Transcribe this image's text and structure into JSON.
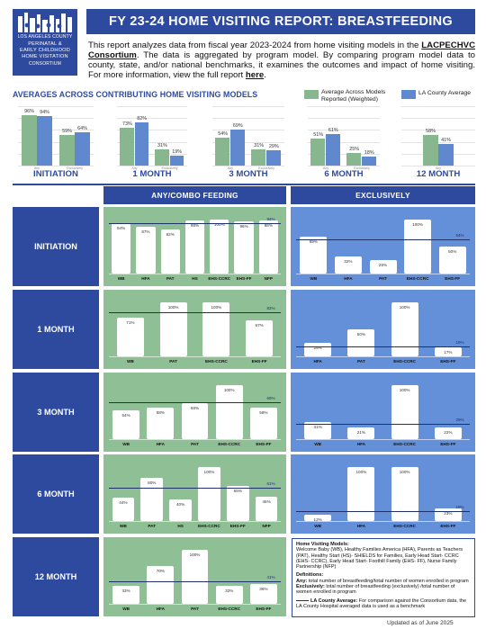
{
  "logo": {
    "line1": "LOS ANGELES COUNTY",
    "line2": "PERINATAL &",
    "line3": "EARLY CHILDHOOD",
    "line4": "HOME VISITATION",
    "line5": "CONSORTIUM"
  },
  "header": {
    "title": "FY 23-24 HOME VISITING REPORT: BREASTFEEDING"
  },
  "intro": {
    "text1": "This report analyzes data from fiscal year 2023-2024 from home visiting models in the ",
    "link1": "LACPECHVC Consortium",
    "text2": ". The data is aggregated by program model. By comparing program model data to county, state, and/or national benchmarks, it examines the outcomes and impact of home visiting. For more information, view the full report ",
    "link2": "here",
    "text3": "."
  },
  "averages": {
    "title": "AVERAGES ACROSS CONTRIBUTING HOME VISITING MODELS",
    "legend": {
      "green": "Average Across Models Reported (Weighted)",
      "blue": "LA County Average"
    }
  },
  "colors": {
    "navy": "#2e4a9e",
    "green": "#8fbf95",
    "avg_green": "#88b68f",
    "avg_blue": "#5f88ce",
    "blue_panel": "#6390d8"
  },
  "chart_data": [
    {
      "type": "bar",
      "title": "INITIATION",
      "categories": [
        "Any",
        "Exclusively"
      ],
      "series": [
        {
          "name": "Average Across Models Reported (Weighted)",
          "values": [
            96,
            59
          ]
        },
        {
          "name": "LA County Average",
          "values": [
            94,
            64
          ]
        }
      ],
      "ylim": [
        0,
        100
      ]
    },
    {
      "type": "bar",
      "title": "1 MONTH",
      "categories": [
        "Any",
        "Exclusively"
      ],
      "series": [
        {
          "name": "Average Across Models Reported (Weighted)",
          "values": [
            73,
            31
          ]
        },
        {
          "name": "LA County Average",
          "values": [
            82,
            19
          ]
        }
      ],
      "ylim": [
        0,
        100
      ]
    },
    {
      "type": "bar",
      "title": "3 MONTH",
      "categories": [
        "Any",
        "Exclusively"
      ],
      "series": [
        {
          "name": "Average Across Models Reported (Weighted)",
          "values": [
            54,
            31
          ]
        },
        {
          "name": "LA County Average",
          "values": [
            69,
            29
          ]
        }
      ],
      "ylim": [
        0,
        100
      ]
    },
    {
      "type": "bar",
      "title": "6 MONTH",
      "categories": [
        "Any",
        "Exclusively"
      ],
      "series": [
        {
          "name": "Average Across Models Reported (Weighted)",
          "values": [
            51,
            25
          ]
        },
        {
          "name": "LA County Average",
          "values": [
            61,
            18
          ]
        }
      ],
      "ylim": [
        0,
        100
      ]
    },
    {
      "type": "bar",
      "title": "12 MONTH",
      "categories": [
        "Any"
      ],
      "series": [
        {
          "name": "Average Across Models Reported (Weighted)",
          "values": [
            58
          ]
        },
        {
          "name": "LA County Average",
          "values": [
            41
          ]
        }
      ],
      "ylim": [
        0,
        100
      ]
    }
  ],
  "grid": {
    "col_any": "ANY/COMBO FEEDING",
    "col_excl": "EXCLUSIVELY",
    "rows": [
      {
        "label": "INITIATION",
        "any": {
          "bench": 94,
          "bars": [
            {
              "cat": "WB",
              "v": 94
            },
            {
              "cat": "HFA",
              "v": 87
            },
            {
              "cat": "PAT",
              "v": 82
            },
            {
              "cat": "HS",
              "v": 98
            },
            {
              "cat": "EHS-CCRC",
              "v": 100
            },
            {
              "cat": "EHS-FF",
              "v": 96
            },
            {
              "cat": "NFP",
              "v": 98
            }
          ]
        },
        "excl": {
          "bench": 64,
          "bars": [
            {
              "cat": "WB",
              "v": 69
            },
            {
              "cat": "HFA",
              "v": 32
            },
            {
              "cat": "PAT",
              "v": 25
            },
            {
              "cat": "EHS-CCRC",
              "v": 100
            },
            {
              "cat": "EHS-FF",
              "v": 50
            }
          ]
        }
      },
      {
        "label": "1 MONTH",
        "any": {
          "bench": 82,
          "bars": [
            {
              "cat": "WB",
              "v": 71
            },
            {
              "cat": "PAT",
              "v": 100
            },
            {
              "cat": "EHS-CCRC",
              "v": 100
            },
            {
              "cat": "EHS-FF",
              "v": 67
            }
          ]
        },
        "excl": {
          "bench": 19,
          "bars": [
            {
              "cat": "HFA",
              "v": 25
            },
            {
              "cat": "PAT",
              "v": 50
            },
            {
              "cat": "EHS-CCRC",
              "v": 100
            },
            {
              "cat": "EHS-FF",
              "v": 17
            }
          ]
        }
      },
      {
        "label": "3 MONTH",
        "any": {
          "bench": 69,
          "bars": [
            {
              "cat": "WB",
              "v": 54
            },
            {
              "cat": "HFA",
              "v": 58
            },
            {
              "cat": "PAT",
              "v": 66
            },
            {
              "cat": "EHS-CCRC",
              "v": 100
            },
            {
              "cat": "EHS-FF",
              "v": 58
            }
          ]
        },
        "excl": {
          "bench": 29,
          "bars": [
            {
              "cat": "WB",
              "v": 31
            },
            {
              "cat": "HFA",
              "v": 21
            },
            {
              "cat": "EHS-CCRC",
              "v": 100
            },
            {
              "cat": "EHS-FF",
              "v": 22
            }
          ]
        }
      },
      {
        "label": "6 MONTH",
        "any": {
          "bench": 61,
          "bars": [
            {
              "cat": "WB",
              "v": 44
            },
            {
              "cat": "PAT",
              "v": 80
            },
            {
              "cat": "HS",
              "v": 40
            },
            {
              "cat": "EHS-CCRC",
              "v": 100
            },
            {
              "cat": "EHS-FF",
              "v": 65
            },
            {
              "cat": "NFP",
              "v": 45
            }
          ]
        },
        "excl": {
          "bench": 18,
          "bars": [
            {
              "cat": "WB",
              "v": 12
            },
            {
              "cat": "HFA",
              "v": 100
            },
            {
              "cat": "EHS-CCRC",
              "v": 100
            },
            {
              "cat": "EHS-FF",
              "v": 23
            }
          ]
        }
      },
      {
        "label": "12 MONTH",
        "any": {
          "bench": 41,
          "bars": [
            {
              "cat": "WB",
              "v": 33
            },
            {
              "cat": "HFA",
              "v": 70
            },
            {
              "cat": "PAT",
              "v": 100
            },
            {
              "cat": "EHS-CCRC",
              "v": 33
            },
            {
              "cat": "EHS-FF",
              "v": 36
            }
          ]
        },
        "excl": null
      }
    ]
  },
  "definitions": {
    "models_title": "Home Visiting Models:",
    "models_text": "Welcome Baby (WB), Healthy Families America (HFA), Parents as Teachers (PAT), Healthy Start (HS)- SHIELDS for Families, Early Head Start- CCRC (EHS- CCRC), Early Head Start- Foothill Family (EHS- FF), Nurse Family Partnership (NFP)",
    "defs_title": "Definitions:",
    "any_term": "Any:",
    "any_text": " total number of breastfeeding/total number of women enrolled in program",
    "excl_term": "Exclusively:",
    "excl_text": " total number of breastfeeding (exclusively) /total number of women enrolled in program",
    "la_term": "LA County Average:",
    "la_text": " For comparison against the Consortium data, the LA County Hospital averaged data is used as a benchmark"
  },
  "footer": {
    "updated": "Updated as of June 2025"
  }
}
